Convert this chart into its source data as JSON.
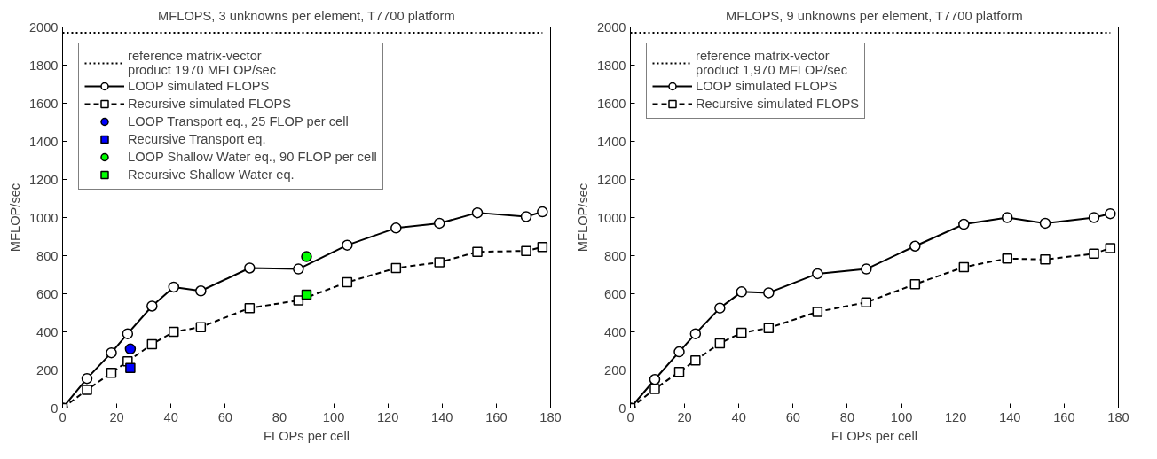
{
  "chart_data": [
    {
      "type": "line",
      "title": "MFLOPS, 3 unknowns per element, T7700 platform",
      "xlabel": "FLOPs per cell",
      "ylabel": "MFLOP/sec",
      "xlim": [
        0,
        180
      ],
      "ylim": [
        0,
        2000
      ],
      "xticks": [
        0,
        20,
        40,
        60,
        80,
        100,
        120,
        140,
        160,
        180
      ],
      "yticks": [
        0,
        200,
        400,
        600,
        800,
        1000,
        1200,
        1400,
        1600,
        1800,
        2000
      ],
      "grid": false,
      "legend": "top left",
      "series": [
        {
          "name": "reference matrix-vector\nproduct 1970 MFLOP/sec",
          "color": "#000000",
          "marker": "none",
          "line_style": "dotted",
          "x": [
            0,
            177
          ],
          "values": [
            1970,
            1970
          ]
        },
        {
          "name": "LOOP simulated FLOPS",
          "color": "#000000",
          "marker": "circle",
          "line_style": "solid",
          "x": [
            0,
            9,
            18,
            24,
            33,
            41,
            51,
            69,
            87,
            105,
            123,
            139,
            153,
            171,
            177
          ],
          "values": [
            0,
            155,
            290,
            390,
            535,
            635,
            615,
            735,
            730,
            855,
            945,
            970,
            1025,
            1005,
            1030
          ]
        },
        {
          "name": "Recursive simulated FLOPS",
          "color": "#000000",
          "marker": "square",
          "line_style": "dashed",
          "x": [
            0,
            9,
            18,
            24,
            33,
            41,
            51,
            69,
            87,
            105,
            123,
            139,
            153,
            171,
            177
          ],
          "values": [
            0,
            95,
            185,
            245,
            335,
            400,
            425,
            525,
            565,
            660,
            735,
            765,
            820,
            825,
            845
          ]
        },
        {
          "name": "LOOP Transport eq., 25 FLOP per cell",
          "color": "#0000ff",
          "marker": "circle",
          "line_style": "solid",
          "x": [
            25
          ],
          "values": [
            310
          ]
        },
        {
          "name": "Recursive Transport eq.",
          "color": "#0000ff",
          "marker": "square",
          "line_style": "solid",
          "x": [
            25
          ],
          "values": [
            210
          ]
        },
        {
          "name": "LOOP Shallow Water eq., 90 FLOP per cell",
          "color": "#00ff00",
          "marker": "circle",
          "line_style": "solid",
          "x": [
            90
          ],
          "values": [
            795
          ]
        },
        {
          "name": "Recursive Shallow Water eq.",
          "color": "#00ff00",
          "marker": "square",
          "line_style": "solid",
          "x": [
            90
          ],
          "values": [
            595
          ]
        }
      ]
    },
    {
      "type": "line",
      "title": "MFLOPS, 9 unknowns per element, T7700 platform",
      "xlabel": "FLOPs per cell",
      "ylabel": "MFLOP/sec",
      "xlim": [
        0,
        180
      ],
      "ylim": [
        0,
        2000
      ],
      "xticks": [
        0,
        20,
        40,
        60,
        80,
        100,
        120,
        140,
        160,
        180
      ],
      "yticks": [
        0,
        200,
        400,
        600,
        800,
        1000,
        1200,
        1400,
        1600,
        1800,
        2000
      ],
      "grid": false,
      "legend": "top left",
      "series": [
        {
          "name": "reference matrix-vector\nproduct 1,970 MFLOP/sec",
          "color": "#000000",
          "marker": "none",
          "line_style": "dotted",
          "x": [
            0,
            177
          ],
          "values": [
            1970,
            1970
          ]
        },
        {
          "name": "LOOP simulated FLOPS",
          "color": "#000000",
          "marker": "circle",
          "line_style": "solid",
          "x": [
            0,
            9,
            18,
            24,
            33,
            41,
            51,
            69,
            87,
            105,
            123,
            139,
            153,
            171,
            177
          ],
          "values": [
            0,
            150,
            295,
            390,
            525,
            610,
            605,
            705,
            730,
            850,
            965,
            1000,
            970,
            1000,
            1020
          ]
        },
        {
          "name": "Recursive simulated FLOPS",
          "color": "#000000",
          "marker": "square",
          "line_style": "dashed",
          "x": [
            0,
            9,
            18,
            24,
            33,
            41,
            51,
            69,
            87,
            105,
            123,
            139,
            153,
            171,
            177
          ],
          "values": [
            0,
            100,
            190,
            250,
            340,
            395,
            420,
            505,
            555,
            650,
            740,
            785,
            780,
            810,
            840
          ]
        }
      ]
    }
  ]
}
